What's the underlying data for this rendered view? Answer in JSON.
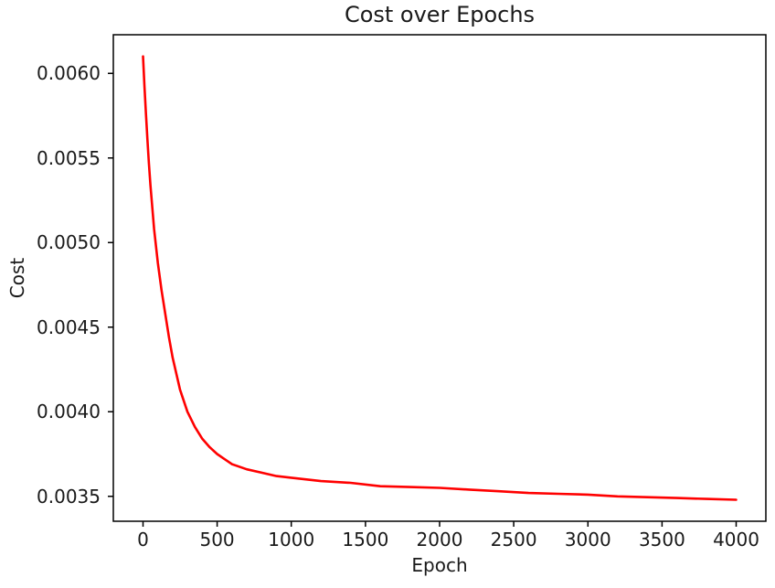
{
  "window": {
    "background": "#ffffff"
  },
  "chart_data": {
    "type": "line",
    "title": "Cost over Epochs",
    "xlabel": "Epoch",
    "ylabel": "Cost",
    "grid": false,
    "legend": "none",
    "line_color": "#ff0000",
    "axis_color": "#000000",
    "text_color": "#1a1a1a",
    "xlim": [
      -200,
      4200
    ],
    "ylim": [
      0.003353,
      0.006228
    ],
    "x_ticks": {
      "values": [
        0,
        500,
        1000,
        1500,
        2000,
        2500,
        3000,
        3500,
        4000
      ],
      "labels": [
        "0",
        "500",
        "1000",
        "1500",
        "2000",
        "2500",
        "3000",
        "3500",
        "4000"
      ]
    },
    "y_ticks": {
      "values": [
        0.0035,
        0.004,
        0.0045,
        0.005,
        0.0055,
        0.006
      ],
      "labels": [
        "0.0035",
        "0.0040",
        "0.0045",
        "0.0050",
        "0.0055",
        "0.0060"
      ]
    },
    "series": [
      {
        "name": "cost",
        "x": [
          0,
          5,
          10,
          20,
          30,
          40,
          50,
          75,
          100,
          125,
          150,
          175,
          200,
          250,
          300,
          350,
          400,
          450,
          500,
          550,
          600,
          700,
          800,
          900,
          1000,
          1200,
          1400,
          1600,
          1800,
          2000,
          2200,
          2400,
          2600,
          2800,
          3000,
          3200,
          3400,
          3600,
          3800,
          4000
        ],
        "y": [
          0.0061,
          0.00601,
          0.00592,
          0.00576,
          0.00561,
          0.00547,
          0.00534,
          0.00508,
          0.00488,
          0.00472,
          0.00458,
          0.00444,
          0.00432,
          0.00413,
          0.004,
          0.00391,
          0.00384,
          0.00379,
          0.00375,
          0.00372,
          0.00369,
          0.00366,
          0.00364,
          0.00362,
          0.00361,
          0.00359,
          0.00358,
          0.00356,
          0.003555,
          0.00355,
          0.00354,
          0.00353,
          0.00352,
          0.003515,
          0.00351,
          0.0035,
          0.003495,
          0.00349,
          0.003485,
          0.00348
        ]
      }
    ]
  }
}
